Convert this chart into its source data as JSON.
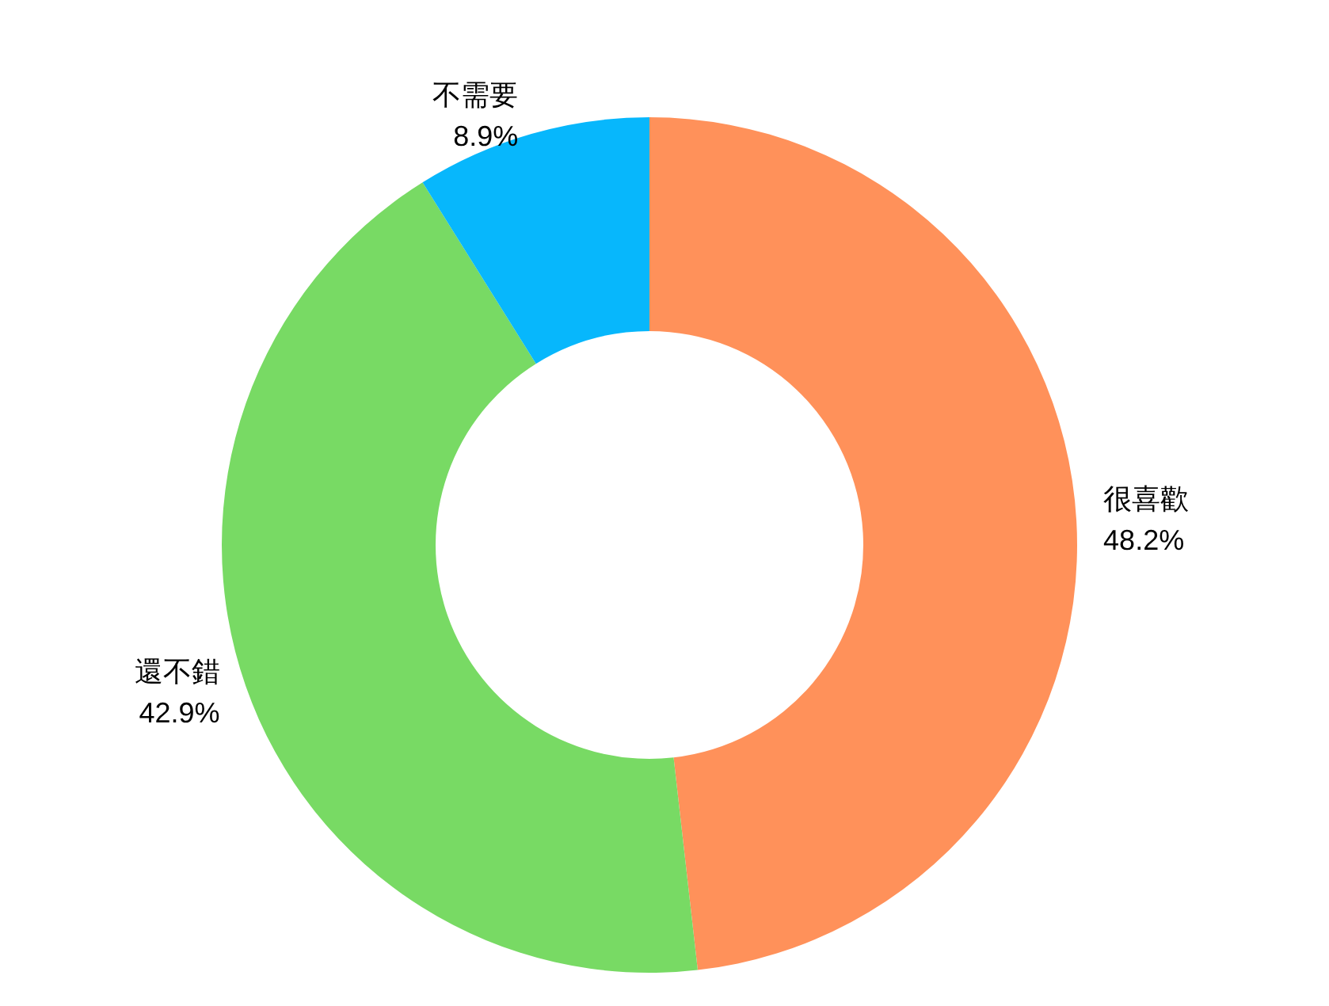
{
  "chart_data": {
    "type": "donut",
    "categories": [
      "很喜歡",
      "還不錯",
      "不需要"
    ],
    "values": [
      48.2,
      42.9,
      8.9
    ],
    "colors": [
      "#ff915a",
      "#78da64",
      "#07b7fc"
    ],
    "value_labels": [
      "48.2%",
      "42.9%",
      "8.9%"
    ]
  }
}
